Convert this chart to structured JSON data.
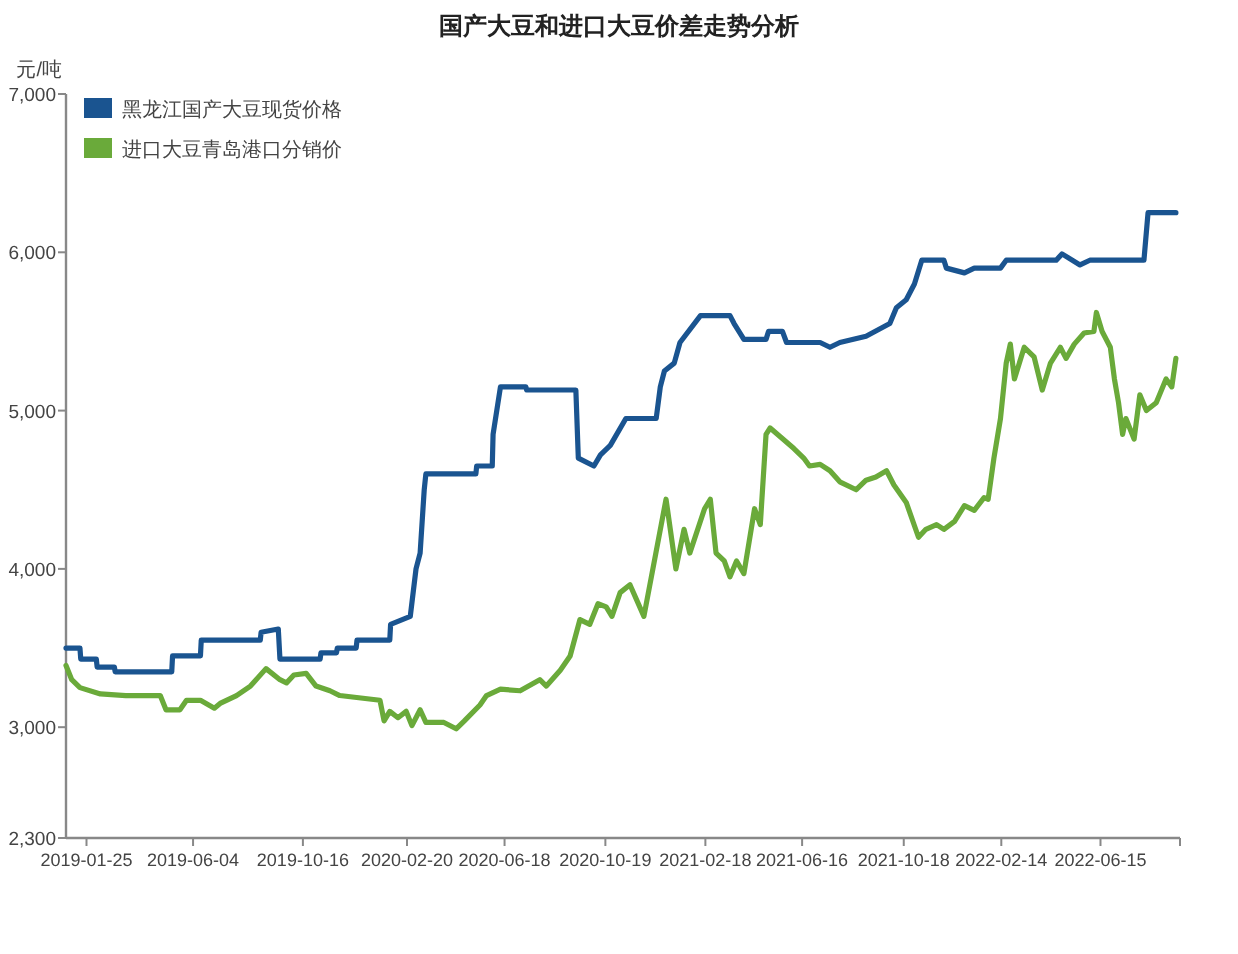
{
  "chart_data": {
    "type": "line",
    "title": "国产大豆和进口大豆价差走势分析",
    "ylabel": "元/吨",
    "legend": "top left",
    "grid": false,
    "marker": "none",
    "line_style": "solid",
    "xlim": [
      "2018-12-31",
      "2022-09-20"
    ],
    "xticks": [
      "2019-01-25",
      "2019-06-04",
      "2019-10-16",
      "2020-02-20",
      "2020-06-18",
      "2020-10-19",
      "2021-02-18",
      "2021-06-16",
      "2021-10-18",
      "2022-02-14",
      "2022-06-15"
    ],
    "ylim": [
      2300,
      7000
    ],
    "yticks": [
      {
        "value": 2300,
        "label": "2,300"
      },
      {
        "value": 3000,
        "label": "3,000"
      },
      {
        "value": 4000,
        "label": "4,000"
      },
      {
        "value": 5000,
        "label": "5,000"
      },
      {
        "value": 6000,
        "label": "6,000"
      },
      {
        "value": 7000,
        "label": "7,000"
      }
    ],
    "series": [
      {
        "name": "黑龙江国产大豆现货价格",
        "color": "#1a5490",
        "x": [
          "2018-12-31",
          "2019-01-17",
          "2019-01-18",
          "2019-02-06",
          "2019-02-07",
          "2019-02-28",
          "2019-03-01",
          "2019-05-09",
          "2019-05-10",
          "2019-06-13",
          "2019-06-14",
          "2019-08-25",
          "2019-08-26",
          "2019-09-16",
          "2019-09-18",
          "2019-11-06",
          "2019-11-07",
          "2019-11-26",
          "2019-11-27",
          "2019-12-20",
          "2019-12-21",
          "2020-01-30",
          "2020-01-31",
          "2020-02-24",
          "2020-03-02",
          "2020-03-07",
          "2020-03-12",
          "2020-03-14",
          "2020-05-14",
          "2020-05-15",
          "2020-06-03",
          "2020-06-04",
          "2020-06-13",
          "2020-07-14",
          "2020-07-15",
          "2020-09-13",
          "2020-09-16",
          "2020-10-05",
          "2020-10-13",
          "2020-10-25",
          "2020-11-13",
          "2020-12-20",
          "2020-12-25",
          "2020-12-30",
          "2021-01-11",
          "2021-01-18",
          "2021-02-12",
          "2021-03-20",
          "2021-03-25",
          "2021-04-06",
          "2021-05-03",
          "2021-05-06",
          "2021-05-23",
          "2021-05-28",
          "2021-07-08",
          "2021-07-20",
          "2021-08-01",
          "2021-09-02",
          "2021-10-01",
          "2021-10-09",
          "2021-10-21",
          "2021-10-31",
          "2021-11-09",
          "2021-12-06",
          "2021-12-09",
          "2021-12-31",
          "2022-01-12",
          "2022-02-13",
          "2022-02-20",
          "2022-04-22",
          "2022-04-29",
          "2022-05-21",
          "2022-06-02",
          "2022-08-07",
          "2022-08-12",
          "2022-09-15"
        ],
        "values": [
          3500,
          3500,
          3430,
          3430,
          3380,
          3380,
          3350,
          3350,
          3450,
          3450,
          3550,
          3550,
          3600,
          3620,
          3430,
          3430,
          3470,
          3470,
          3500,
          3500,
          3550,
          3550,
          3650,
          3700,
          4000,
          4100,
          4500,
          4600,
          4600,
          4650,
          4650,
          4850,
          5150,
          5150,
          5130,
          5130,
          4700,
          4650,
          4720,
          4780,
          4950,
          4950,
          5150,
          5250,
          5300,
          5430,
          5600,
          5600,
          5550,
          5450,
          5450,
          5500,
          5500,
          5430,
          5430,
          5400,
          5430,
          5470,
          5550,
          5650,
          5700,
          5800,
          5950,
          5950,
          5900,
          5870,
          5900,
          5900,
          5950,
          5950,
          5990,
          5920,
          5950,
          5950,
          6250,
          6250
        ]
      },
      {
        "name": "进口大豆青岛港口分销价",
        "color": "#6aaa3a",
        "x": [
          "2018-12-31",
          "2019-01-07",
          "2019-01-17",
          "2019-02-11",
          "2019-03-14",
          "2019-04-25",
          "2019-05-02",
          "2019-05-19",
          "2019-05-27",
          "2019-06-13",
          "2019-06-30",
          "2019-07-07",
          "2019-07-27",
          "2019-08-13",
          "2019-09-01",
          "2019-09-18",
          "2019-09-26",
          "2019-10-05",
          "2019-10-20",
          "2019-11-01",
          "2019-11-18",
          "2019-11-30",
          "2020-01-18",
          "2020-01-23",
          "2020-01-30",
          "2020-02-09",
          "2020-02-19",
          "2020-02-26",
          "2020-03-07",
          "2020-03-14",
          "2020-04-05",
          "2020-04-20",
          "2020-04-30",
          "2020-05-19",
          "2020-05-27",
          "2020-06-13",
          "2020-07-07",
          "2020-07-31",
          "2020-08-08",
          "2020-08-25",
          "2020-09-06",
          "2020-09-18",
          "2020-09-30",
          "2020-10-10",
          "2020-10-20",
          "2020-10-27",
          "2020-11-06",
          "2020-11-18",
          "2020-12-05",
          "2021-01-01",
          "2021-01-13",
          "2021-01-23",
          "2021-01-30",
          "2021-02-17",
          "2021-02-24",
          "2021-03-03",
          "2021-03-13",
          "2021-03-20",
          "2021-03-28",
          "2021-04-06",
          "2021-04-19",
          "2021-04-26",
          "2021-05-03",
          "2021-05-08",
          "2021-06-06",
          "2021-06-18",
          "2021-06-25",
          "2021-07-08",
          "2021-07-20",
          "2021-08-01",
          "2021-08-21",
          "2021-09-02",
          "2021-09-14",
          "2021-09-27",
          "2021-10-06",
          "2021-10-21",
          "2021-11-05",
          "2021-11-14",
          "2021-11-27",
          "2021-12-06",
          "2021-12-19",
          "2021-12-31",
          "2022-01-12",
          "2022-01-24",
          "2022-01-29",
          "2022-02-05",
          "2022-02-13",
          "2022-02-20",
          "2022-02-25",
          "2022-03-02",
          "2022-03-14",
          "2022-03-26",
          "2022-04-05",
          "2022-04-15",
          "2022-04-27",
          "2022-05-04",
          "2022-05-14",
          "2022-05-26",
          "2022-06-07",
          "2022-06-10",
          "2022-06-17",
          "2022-06-27",
          "2022-07-02",
          "2022-07-07",
          "2022-07-12",
          "2022-07-16",
          "2022-07-26",
          "2022-08-02",
          "2022-08-10",
          "2022-08-22",
          "2022-09-03",
          "2022-09-10",
          "2022-09-15"
        ],
        "values": [
          3390,
          3300,
          3250,
          3210,
          3200,
          3200,
          3110,
          3110,
          3170,
          3170,
          3120,
          3150,
          3200,
          3260,
          3370,
          3300,
          3280,
          3330,
          3340,
          3260,
          3230,
          3200,
          3170,
          3040,
          3100,
          3060,
          3100,
          3010,
          3110,
          3030,
          3030,
          2990,
          3040,
          3140,
          3200,
          3240,
          3230,
          3300,
          3260,
          3360,
          3450,
          3680,
          3650,
          3780,
          3760,
          3700,
          3850,
          3900,
          3700,
          4440,
          4000,
          4250,
          4100,
          4380,
          4440,
          4100,
          4050,
          3950,
          4050,
          3970,
          4380,
          4280,
          4850,
          4890,
          4760,
          4700,
          4650,
          4660,
          4620,
          4550,
          4500,
          4560,
          4580,
          4620,
          4530,
          4420,
          4200,
          4250,
          4280,
          4250,
          4300,
          4400,
          4370,
          4450,
          4440,
          4700,
          4950,
          5300,
          5420,
          5200,
          5400,
          5340,
          5130,
          5300,
          5400,
          5330,
          5420,
          5490,
          5500,
          5620,
          5500,
          5400,
          5200,
          5050,
          4850,
          4950,
          4820,
          5100,
          5000,
          5050,
          5200,
          5150,
          5330
        ]
      }
    ]
  }
}
